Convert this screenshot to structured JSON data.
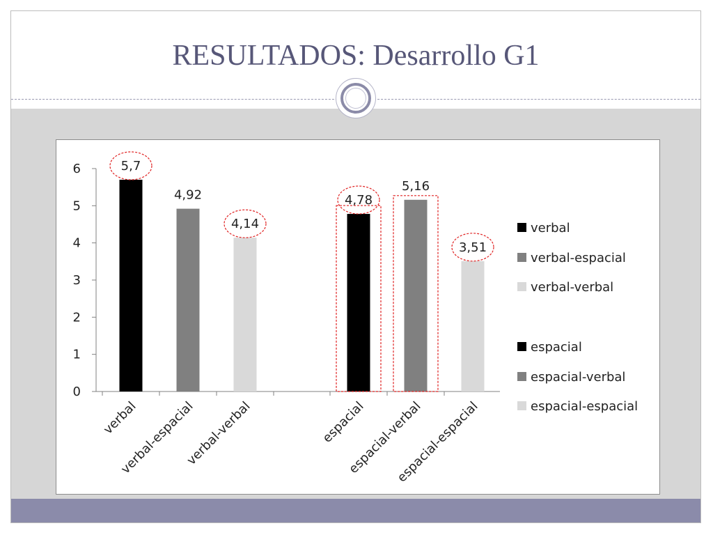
{
  "slide": {
    "title": "RESULTADOS: Desarrollo G1"
  },
  "colors": {
    "title": "#575778",
    "panel": "#d6d6d6",
    "band": "#8b8baa",
    "highlight": "#e02020"
  },
  "chart_data": {
    "type": "bar",
    "title": "",
    "xlabel": "",
    "ylabel": "",
    "ylim": [
      0,
      6
    ],
    "yticks": [
      "0",
      "1",
      "2",
      "3",
      "4",
      "5",
      "6"
    ],
    "grid": false,
    "legend_position": "right",
    "categories": [
      "verbal",
      "verbal-espacial",
      "verbal-verbal",
      "espacial",
      "espacial-verbal",
      "espacial-espacial"
    ],
    "values": [
      5.7,
      4.92,
      4.14,
      4.78,
      5.16,
      3.51
    ],
    "value_labels": [
      "5,7",
      "4,92",
      "4,14",
      "4,78",
      "5,16",
      "3,51"
    ],
    "colors": [
      "#000000",
      "#808080",
      "#d9d9d9",
      "#000000",
      "#808080",
      "#d9d9d9"
    ],
    "legend": [
      {
        "label": "verbal",
        "color": "#000000"
      },
      {
        "label": "verbal-espacial",
        "color": "#808080"
      },
      {
        "label": "verbal-verbal",
        "color": "#d9d9d9"
      },
      {
        "label": "espacial",
        "color": "#000000"
      },
      {
        "label": "espacial-verbal",
        "color": "#808080"
      },
      {
        "label": "espacial-espacial",
        "color": "#d9d9d9"
      }
    ],
    "annotations": [
      {
        "kind": "circle",
        "category": "verbal"
      },
      {
        "kind": "circle",
        "category": "verbal-verbal"
      },
      {
        "kind": "circle",
        "category": "espacial"
      },
      {
        "kind": "circle",
        "category": "espacial-espacial"
      },
      {
        "kind": "box",
        "category": "espacial"
      },
      {
        "kind": "box",
        "category": "espacial-verbal"
      }
    ]
  }
}
